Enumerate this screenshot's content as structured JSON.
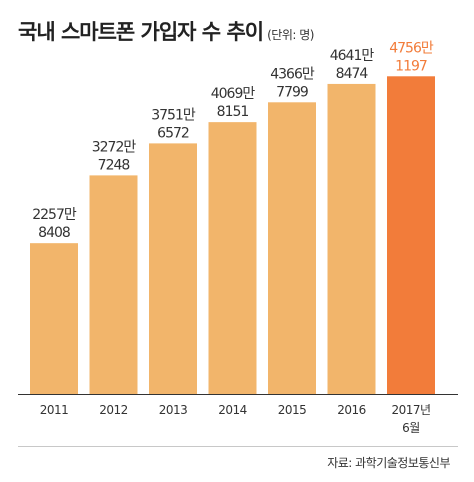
{
  "title": "국내 스마트폰 가입자 수 추이",
  "unit": "(단위: 명)",
  "source": "자료: 과학기술정보통신부",
  "colors": {
    "bar": "#f2b56b",
    "highlight_bar": "#f27c3a",
    "label": "#333333",
    "highlight_label": "#f27c3a"
  },
  "chart_data": {
    "type": "bar",
    "categories": [
      "2011",
      "2012",
      "2013",
      "2014",
      "2015",
      "2016",
      "2017년 6월"
    ],
    "category_labels": [
      [
        "2011"
      ],
      [
        "2012"
      ],
      [
        "2013"
      ],
      [
        "2014"
      ],
      [
        "2015"
      ],
      [
        "2016"
      ],
      [
        "2017년",
        "6월"
      ]
    ],
    "values": [
      22578408,
      32727248,
      37516572,
      40698151,
      43667799,
      46418474,
      47561197
    ],
    "data_labels": [
      [
        "2257만",
        "8408"
      ],
      [
        "3272만",
        "7248"
      ],
      [
        "3751만",
        "6572"
      ],
      [
        "4069만",
        "8151"
      ],
      [
        "4366만",
        "7799"
      ],
      [
        "4641만",
        "8474"
      ],
      [
        "4756만",
        "1197"
      ]
    ],
    "highlight_index": 6,
    "ylim": [
      0,
      50000000
    ],
    "grid": false,
    "xlabel": "",
    "ylabel": ""
  }
}
